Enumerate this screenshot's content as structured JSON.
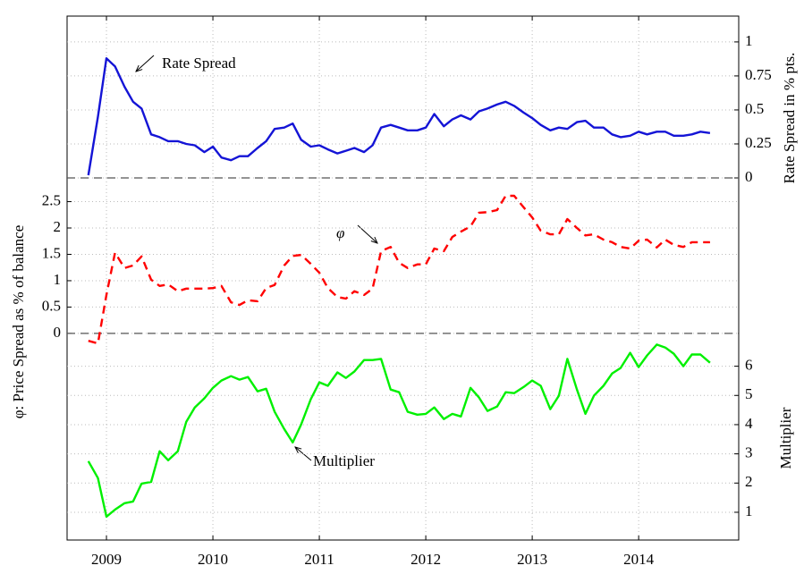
{
  "chart_data": [
    {
      "type": "line",
      "ylabel": "Rate Spread in % pts.",
      "annotation": "Rate Spread",
      "yaxis_side": "right",
      "zero_line": true,
      "xlim": [
        2008.63,
        2014.94
      ],
      "xticks": [
        2009,
        2010,
        2011,
        2012,
        2013,
        2014
      ],
      "ylim": [
        0,
        1.19
      ],
      "yticks": [
        0,
        0.25,
        0.5,
        0.75,
        1
      ],
      "grid": true,
      "x": [
        2008.83,
        2008.92,
        2009.0,
        2009.08,
        2009.17,
        2009.25,
        2009.33,
        2009.42,
        2009.5,
        2009.58,
        2009.67,
        2009.75,
        2009.83,
        2009.92,
        2010.0,
        2010.08,
        2010.17,
        2010.25,
        2010.33,
        2010.42,
        2010.5,
        2010.58,
        2010.67,
        2010.75,
        2010.83,
        2010.92,
        2011.0,
        2011.08,
        2011.17,
        2011.25,
        2011.33,
        2011.42,
        2011.5,
        2011.58,
        2011.67,
        2011.75,
        2011.83,
        2011.92,
        2012.0,
        2012.08,
        2012.17,
        2012.25,
        2012.33,
        2012.42,
        2012.5,
        2012.58,
        2012.67,
        2012.75,
        2012.83,
        2012.92,
        2013.0,
        2013.08,
        2013.17,
        2013.25,
        2013.33,
        2013.42,
        2013.5,
        2013.58,
        2013.67,
        2013.75,
        2013.83,
        2013.92,
        2014.0,
        2014.08,
        2014.17,
        2014.25,
        2014.33,
        2014.42,
        2014.5,
        2014.58,
        2014.67
      ],
      "series": [
        {
          "name": "Rate Spread",
          "color": "#1414d6",
          "dash": false,
          "values": [
            0.02,
            0.45,
            0.88,
            0.82,
            0.67,
            0.56,
            0.51,
            0.32,
            0.3,
            0.27,
            0.27,
            0.25,
            0.24,
            0.19,
            0.23,
            0.15,
            0.13,
            0.16,
            0.16,
            0.22,
            0.27,
            0.36,
            0.37,
            0.4,
            0.28,
            0.23,
            0.24,
            0.21,
            0.18,
            0.2,
            0.22,
            0.19,
            0.24,
            0.37,
            0.39,
            0.37,
            0.35,
            0.35,
            0.37,
            0.47,
            0.38,
            0.43,
            0.46,
            0.43,
            0.49,
            0.51,
            0.54,
            0.56,
            0.53,
            0.48,
            0.44,
            0.39,
            0.35,
            0.37,
            0.36,
            0.41,
            0.42,
            0.37,
            0.37,
            0.32,
            0.3,
            0.31,
            0.34,
            0.32,
            0.34,
            0.34,
            0.31,
            0.31,
            0.32,
            0.34,
            0.33
          ]
        }
      ]
    },
    {
      "type": "line",
      "ylabel": "φ: Price Spread as % of balance",
      "annotation": "φ",
      "yaxis_side": "left",
      "zero_line": true,
      "xlim": [
        2008.63,
        2014.94
      ],
      "xticks": [
        2009,
        2010,
        2011,
        2012,
        2013,
        2014
      ],
      "ylim": [
        -0.29,
        2.95
      ],
      "yticks": [
        0,
        0.5,
        1,
        1.5,
        2,
        2.5
      ],
      "grid": true,
      "x": [
        2008.83,
        2008.92,
        2009.0,
        2009.08,
        2009.17,
        2009.25,
        2009.33,
        2009.42,
        2009.5,
        2009.58,
        2009.67,
        2009.75,
        2009.83,
        2009.92,
        2010.0,
        2010.08,
        2010.17,
        2010.25,
        2010.33,
        2010.42,
        2010.5,
        2010.58,
        2010.67,
        2010.75,
        2010.83,
        2010.92,
        2011.0,
        2011.08,
        2011.17,
        2011.25,
        2011.33,
        2011.42,
        2011.5,
        2011.58,
        2011.67,
        2011.75,
        2011.83,
        2011.92,
        2012.0,
        2012.08,
        2012.17,
        2012.25,
        2012.33,
        2012.42,
        2012.5,
        2012.58,
        2012.67,
        2012.75,
        2012.83,
        2012.92,
        2013.0,
        2013.08,
        2013.17,
        2013.25,
        2013.33,
        2013.42,
        2013.5,
        2013.58,
        2013.67,
        2013.75,
        2013.83,
        2013.92,
        2014.0,
        2014.08,
        2014.17,
        2014.25,
        2014.33,
        2014.42,
        2014.5,
        2014.58,
        2014.67
      ],
      "series": [
        {
          "name": "φ",
          "color": "#ff0000",
          "dash": true,
          "values": [
            -0.14,
            -0.19,
            0.73,
            1.53,
            1.24,
            1.29,
            1.46,
            1.02,
            0.9,
            0.93,
            0.8,
            0.85,
            0.85,
            0.85,
            0.86,
            0.9,
            0.59,
            0.54,
            0.63,
            0.61,
            0.86,
            0.92,
            1.29,
            1.47,
            1.49,
            1.32,
            1.15,
            0.86,
            0.69,
            0.66,
            0.8,
            0.73,
            0.85,
            1.56,
            1.64,
            1.34,
            1.24,
            1.31,
            1.31,
            1.61,
            1.56,
            1.83,
            1.93,
            2.03,
            2.29,
            2.3,
            2.34,
            2.61,
            2.61,
            2.39,
            2.2,
            1.95,
            1.88,
            1.88,
            2.17,
            2.0,
            1.86,
            1.88,
            1.78,
            1.73,
            1.64,
            1.61,
            1.76,
            1.78,
            1.63,
            1.78,
            1.68,
            1.64,
            1.73,
            1.73,
            1.73
          ]
        }
      ]
    },
    {
      "type": "line",
      "ylabel": "Multiplier",
      "annotation": "Multiplier",
      "yaxis_side": "right",
      "zero_line": false,
      "xlim": [
        2008.63,
        2014.94
      ],
      "xticks": [
        2009,
        2010,
        2011,
        2012,
        2013,
        2014
      ],
      "ylim": [
        0.05,
        6.6
      ],
      "yticks": [
        1,
        2,
        3,
        4,
        5,
        6
      ],
      "grid": true,
      "x": [
        2008.83,
        2008.92,
        2009.0,
        2009.08,
        2009.17,
        2009.25,
        2009.33,
        2009.42,
        2009.5,
        2009.58,
        2009.67,
        2009.75,
        2009.83,
        2009.92,
        2010.0,
        2010.08,
        2010.17,
        2010.25,
        2010.33,
        2010.42,
        2010.5,
        2010.58,
        2010.67,
        2010.75,
        2010.83,
        2010.92,
        2011.0,
        2011.08,
        2011.17,
        2011.25,
        2011.33,
        2011.42,
        2011.5,
        2011.58,
        2011.67,
        2011.75,
        2011.83,
        2011.92,
        2012.0,
        2012.08,
        2012.17,
        2012.25,
        2012.33,
        2012.42,
        2012.5,
        2012.58,
        2012.67,
        2012.75,
        2012.83,
        2012.92,
        2013.0,
        2013.08,
        2013.17,
        2013.25,
        2013.33,
        2013.42,
        2013.5,
        2013.58,
        2013.67,
        2013.75,
        2013.83,
        2013.92,
        2014.0,
        2014.08,
        2014.17,
        2014.25,
        2014.33,
        2014.42,
        2014.5,
        2014.58,
        2014.67
      ],
      "series": [
        {
          "name": "Multiplier",
          "color": "#00f000",
          "dash": false,
          "values": [
            2.75,
            2.17,
            0.85,
            1.09,
            1.31,
            1.37,
            1.98,
            2.04,
            3.09,
            2.78,
            3.09,
            4.1,
            4.59,
            4.9,
            5.26,
            5.51,
            5.66,
            5.54,
            5.63,
            5.14,
            5.23,
            4.44,
            3.85,
            3.39,
            4.01,
            4.87,
            5.45,
            5.33,
            5.79,
            5.6,
            5.82,
            6.21,
            6.21,
            6.25,
            5.2,
            5.11,
            4.44,
            4.34,
            4.37,
            4.59,
            4.19,
            4.37,
            4.28,
            5.26,
            4.93,
            4.47,
            4.62,
            5.11,
            5.08,
            5.29,
            5.51,
            5.33,
            4.53,
            4.99,
            6.25,
            5.2,
            4.37,
            4.99,
            5.33,
            5.75,
            5.94,
            6.46,
            5.97,
            6.37,
            6.74,
            6.64,
            6.43,
            6.0,
            6.4,
            6.4,
            6.12
          ]
        }
      ]
    }
  ]
}
